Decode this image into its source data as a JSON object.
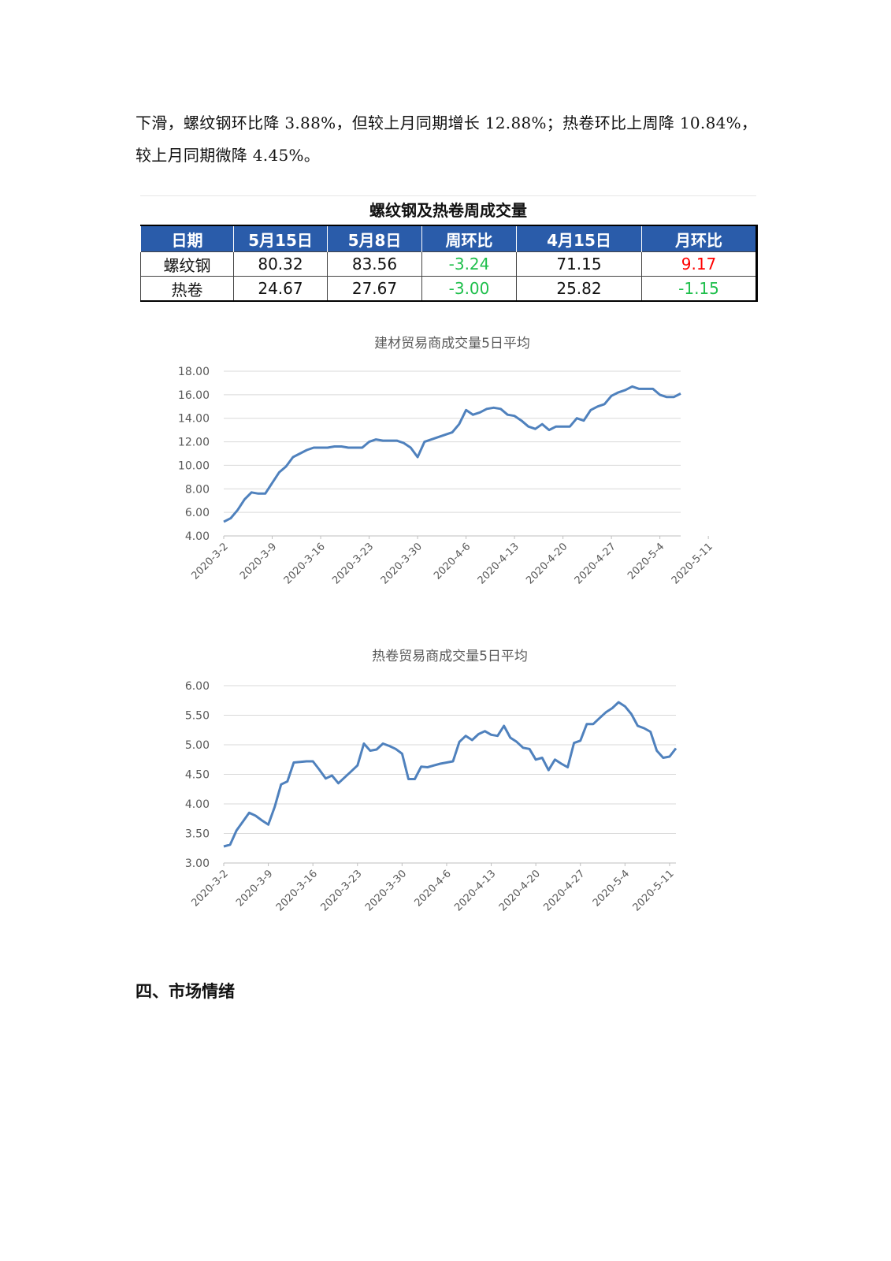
{
  "paragraph": {
    "line1": "下滑，螺纹钢环比降 3.88%，但较上月同期增长 12.88%；热卷环比上周降 10.84%，",
    "line2": "较上月同期微降 4.45%。"
  },
  "table": {
    "title": "螺纹钢及热卷周成交量",
    "headers": [
      "日期",
      "5月15日",
      "5月8日",
      "周环比",
      "4月15日",
      "月环比"
    ],
    "rows": [
      {
        "name": "螺纹钢",
        "may15": "80.32",
        "may8": "83.56",
        "wow": "-3.24",
        "apr15": "71.15",
        "mom": "9.17"
      },
      {
        "name": "热卷",
        "may15": "24.67",
        "may8": "27.67",
        "wow": "-3.00",
        "apr15": "25.82",
        "mom": "-1.15"
      }
    ],
    "colors": {
      "header_bg": "#2a5caa",
      "negative": "#1fbf4c",
      "positive": "#ff0000"
    }
  },
  "chart_data": [
    {
      "type": "line",
      "title": "建材贸易商成交量5日平均",
      "xlabel": "",
      "ylabel": "",
      "ylim": [
        4,
        18
      ],
      "y_ticks": [
        "4.00",
        "6.00",
        "8.00",
        "10.00",
        "12.00",
        "14.00",
        "16.00",
        "18.00"
      ],
      "x_ticks": [
        "2020-3-2",
        "2020-3-9",
        "2020-3-16",
        "2020-3-23",
        "2020-3-30",
        "2020-4-6",
        "2020-4-13",
        "2020-4-20",
        "2020-4-27",
        "2020-5-4",
        "2020-5-11"
      ],
      "grid": true,
      "color": "#4f81bd",
      "series": [
        {
          "values": [
            5.2,
            5.5,
            6.2,
            7.1,
            7.7,
            7.6,
            7.6,
            8.5,
            9.4,
            9.9,
            10.7,
            11.0,
            11.3,
            11.5,
            11.5,
            11.5,
            11.6,
            11.6,
            11.5,
            11.5,
            11.5,
            12.0,
            12.2,
            12.1,
            12.1,
            12.1,
            11.9,
            11.5,
            10.7,
            12.0,
            12.2,
            12.4,
            12.6,
            12.8,
            13.5,
            14.7,
            14.3,
            14.5,
            14.8,
            14.9,
            14.8,
            14.3,
            14.2,
            13.8,
            13.3,
            13.1,
            13.5,
            13.0,
            13.3,
            13.3,
            13.3,
            14.0,
            13.8,
            14.7,
            15.0,
            15.2,
            15.9,
            16.2,
            16.4,
            16.7,
            16.5,
            16.5,
            16.5,
            16.0,
            15.8,
            15.8,
            16.1
          ]
        }
      ]
    },
    {
      "type": "line",
      "title": "热卷贸易商成交量5日平均",
      "xlabel": "",
      "ylabel": "",
      "ylim": [
        3,
        6
      ],
      "y_ticks": [
        "3.00",
        "3.50",
        "4.00",
        "4.50",
        "5.00",
        "5.50",
        "6.00"
      ],
      "x_ticks": [
        "2020-3-2",
        "2020-3-9",
        "2020-3-16",
        "2020-3-23",
        "2020-3-30",
        "2020-4-6",
        "2020-4-13",
        "2020-4-20",
        "2020-4-27",
        "2020-5-4",
        "2020-5-11"
      ],
      "grid": true,
      "color": "#4f81bd",
      "series": [
        {
          "values": [
            3.28,
            3.31,
            3.55,
            3.7,
            3.85,
            3.8,
            3.72,
            3.65,
            3.95,
            4.33,
            4.38,
            4.7,
            4.71,
            4.72,
            4.72,
            4.58,
            4.43,
            4.48,
            4.35,
            4.45,
            4.55,
            4.65,
            5.02,
            4.9,
            4.92,
            5.02,
            4.98,
            4.93,
            4.85,
            4.42,
            4.42,
            4.63,
            4.62,
            4.65,
            4.68,
            4.7,
            4.72,
            5.05,
            5.15,
            5.08,
            5.18,
            5.23,
            5.17,
            5.15,
            5.32,
            5.12,
            5.05,
            4.95,
            4.93,
            4.75,
            4.78,
            4.57,
            4.75,
            4.68,
            4.62,
            5.03,
            5.07,
            5.35,
            5.35,
            5.45,
            5.55,
            5.62,
            5.72,
            5.65,
            5.52,
            5.32,
            5.28,
            5.22,
            4.9,
            4.78,
            4.8,
            4.94
          ]
        }
      ]
    }
  ],
  "section_heading": "四、市场情绪"
}
